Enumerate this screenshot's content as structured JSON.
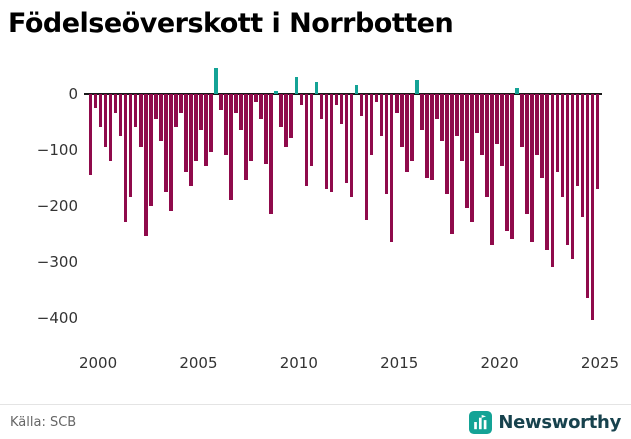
{
  "title": "Födelseöverskott i Norrbotten",
  "footer": {
    "source": "Källa: SCB",
    "brand": "Newsworthy"
  },
  "chart_data": {
    "type": "bar",
    "title": "Födelseöverskott i Norrbotten",
    "xlabel": "",
    "ylabel": "",
    "frequency": "quarterly",
    "start_period": "2000-Q1",
    "end_period": "2025-Q2",
    "x_ticks": [
      2000,
      2005,
      2010,
      2015,
      2020,
      2025
    ],
    "y_ticks": [
      0,
      -100,
      -200,
      -300,
      -400
    ],
    "ylim": [
      -440,
      60
    ],
    "grid": false,
    "legend": false,
    "colors": {
      "positive": "#14a396",
      "negative": "#8f0a4b",
      "zero_line": "#1a1a1a",
      "brand_teal": "#14a396"
    },
    "values": [
      -145,
      -25,
      -60,
      -95,
      -120,
      -35,
      -75,
      -230,
      -185,
      -60,
      -95,
      -255,
      -200,
      -45,
      -85,
      -175,
      -210,
      -60,
      -35,
      -140,
      -165,
      -120,
      -65,
      -130,
      -105,
      45,
      -30,
      -110,
      -190,
      -35,
      -65,
      -155,
      -120,
      -15,
      -45,
      -125,
      -215,
      5,
      -60,
      -95,
      -80,
      30,
      -20,
      -165,
      -130,
      20,
      -45,
      -170,
      -175,
      -20,
      -55,
      -160,
      -185,
      15,
      -40,
      -225,
      -110,
      -15,
      -75,
      -180,
      -265,
      -35,
      -95,
      -140,
      -120,
      25,
      -65,
      -150,
      -155,
      -45,
      -85,
      -180,
      -250,
      -75,
      -120,
      -205,
      -230,
      -70,
      -110,
      -185,
      -270,
      -90,
      -130,
      -245,
      -260,
      10,
      -95,
      -215,
      -265,
      -110,
      -150,
      -280,
      -310,
      -140,
      -185,
      -270,
      -295,
      -165,
      -220,
      -365,
      -405,
      -170
    ]
  }
}
